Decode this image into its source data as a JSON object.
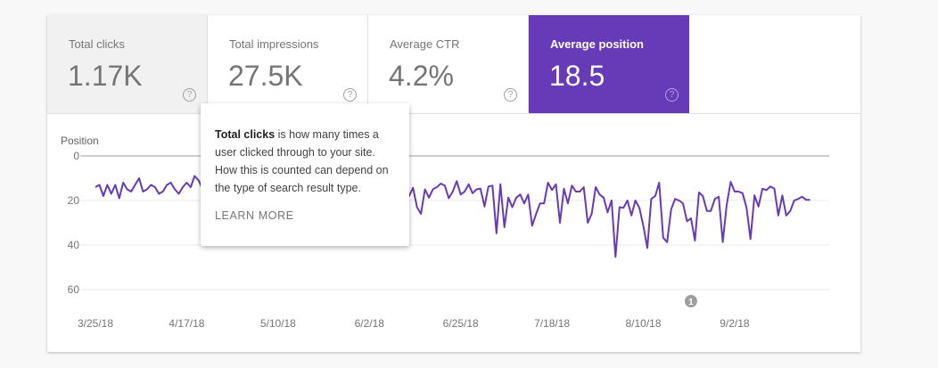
{
  "metrics": [
    {
      "label": "Total clicks",
      "value": "1.17K",
      "help": "?"
    },
    {
      "label": "Total impressions",
      "value": "27.5K",
      "help": "?"
    },
    {
      "label": "Average CTR",
      "value": "4.2%",
      "help": "?"
    },
    {
      "label": "Average position",
      "value": "18.5",
      "help": "?"
    }
  ],
  "tooltip": {
    "bold": "Total clicks",
    "text": " is how many times a user clicked through to your site. How this is counted can depend on the type of search result type.",
    "link": "LEARN MORE"
  },
  "colors": {
    "accent": "#673ab7",
    "line": "#673ab7"
  },
  "chart_data": {
    "type": "line",
    "ylabel": "Position",
    "y_inverted": true,
    "ylim": [
      0,
      60
    ],
    "yticks": [
      "0",
      "20",
      "40",
      "60"
    ],
    "xticks": [
      "3/25/18",
      "4/17/18",
      "5/10/18",
      "6/2/18",
      "6/25/18",
      "7/18/18",
      "8/10/18",
      "9/2/18"
    ],
    "start_date": "3/25/18",
    "annotation": {
      "label": "1",
      "date": "8/22/18"
    },
    "series": [
      {
        "name": "Average position",
        "values": [
          14,
          13,
          18,
          13,
          17,
          13,
          19,
          12,
          15,
          16,
          13,
          10,
          16,
          15,
          13,
          14,
          17,
          16,
          13,
          12,
          15,
          17,
          14,
          12,
          14,
          9,
          11,
          15,
          14,
          16,
          13,
          15,
          17,
          14,
          12,
          15,
          16,
          13,
          14,
          18,
          15,
          13,
          16,
          14,
          12,
          15,
          17,
          14,
          13,
          16,
          15,
          14,
          12,
          16,
          18,
          14,
          13,
          15,
          17,
          13,
          14,
          16,
          15,
          12,
          14,
          17,
          15,
          13,
          16,
          14,
          15,
          18,
          14,
          13,
          16,
          15,
          17,
          14,
          15,
          18,
          14.3,
          23,
          26,
          15,
          18.7,
          15,
          14,
          12.4,
          13.3,
          19,
          16,
          11.3,
          17.3,
          16,
          12.7,
          16.7,
          15,
          14.7,
          22.7,
          13.7,
          13.3,
          34.7,
          12.7,
          32,
          18.7,
          23,
          18.7,
          17.3,
          21.3,
          17.3,
          31.3,
          26,
          21.3,
          21.3,
          12,
          15.3,
          12.7,
          30,
          14.7,
          21.3,
          13.3,
          16,
          16,
          14,
          30,
          26,
          14,
          17.3,
          18.7,
          25.3,
          20,
          45.3,
          23,
          23.3,
          20,
          26.7,
          20,
          23.3,
          31.3,
          41.3,
          19.3,
          18,
          12,
          36.7,
          38.7,
          24,
          19.3,
          20,
          21.3,
          29.3,
          28,
          38,
          16.4,
          18,
          24.7,
          24.7,
          19.3,
          18.3,
          38.7,
          22,
          11.6,
          16,
          16,
          16.7,
          23.3,
          37.3,
          17.7,
          22.7,
          14.7,
          15.3,
          13.7,
          14.7,
          26.7,
          17.7,
          26.7,
          24.7,
          20,
          19.3,
          18.3,
          19.7,
          19.7
        ]
      }
    ]
  }
}
